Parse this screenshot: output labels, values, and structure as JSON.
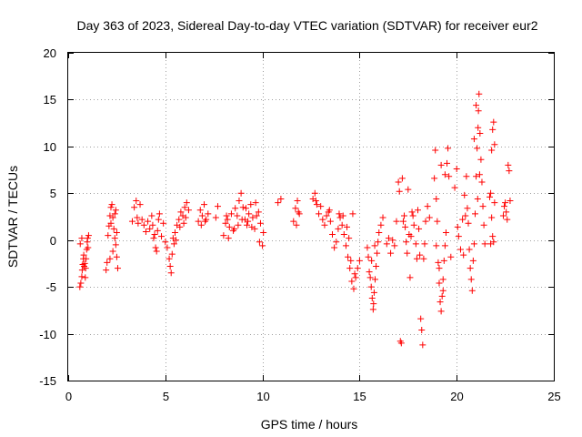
{
  "chart_data": {
    "type": "scatter",
    "title": "Day 363 of 2023, Sidereal Day-to-day VTEC variation (SDTVAR) for receiver eur2",
    "xlabel": "GPS time / hours",
    "ylabel": "SDTVAR / TECUs",
    "xlim": [
      0,
      25
    ],
    "ylim": [
      -15,
      20
    ],
    "xticks": [
      "0",
      "5",
      "10",
      "15",
      "20",
      "25"
    ],
    "yticks": [
      "-15",
      "-10",
      "-5",
      "0",
      "5",
      "10",
      "15",
      "20"
    ],
    "grid": true,
    "marker": "plus",
    "series": [
      {
        "name": "SDTVAR",
        "color": "#ff0000",
        "points": [
          [
            0.6,
            -5.0
          ],
          [
            0.65,
            -4.6
          ],
          [
            0.7,
            -3.9
          ],
          [
            0.72,
            -3.2
          ],
          [
            0.75,
            -2.6
          ],
          [
            0.78,
            -2.0
          ],
          [
            0.8,
            -1.6
          ],
          [
            0.85,
            -2.5
          ],
          [
            0.9,
            -3.0
          ],
          [
            0.92,
            -2.0
          ],
          [
            0.95,
            -1.0
          ],
          [
            0.98,
            -0.2
          ],
          [
            1.0,
            0.2
          ],
          [
            1.02,
            -0.8
          ],
          [
            0.7,
            0.2
          ],
          [
            0.62,
            -0.4
          ],
          [
            1.05,
            0.5
          ],
          [
            0.88,
            -4.0
          ],
          [
            0.82,
            -2.8
          ],
          [
            1.95,
            -3.2
          ],
          [
            2.0,
            -2.4
          ],
          [
            2.05,
            0.5
          ],
          [
            2.1,
            1.5
          ],
          [
            2.15,
            2.6
          ],
          [
            2.2,
            3.5
          ],
          [
            2.25,
            3.8
          ],
          [
            2.3,
            2.4
          ],
          [
            2.35,
            1.2
          ],
          [
            2.4,
            0.2
          ],
          [
            2.45,
            -0.5
          ],
          [
            2.5,
            -1.8
          ],
          [
            2.55,
            -3.0
          ],
          [
            2.45,
            3.2
          ],
          [
            2.3,
            -1.2
          ],
          [
            2.2,
            1.8
          ],
          [
            2.15,
            -2.0
          ],
          [
            2.4,
            2.8
          ],
          [
            2.5,
            0.8
          ],
          [
            3.3,
            2.0
          ],
          [
            3.4,
            3.5
          ],
          [
            3.5,
            4.2
          ],
          [
            3.55,
            2.4
          ],
          [
            3.6,
            1.8
          ],
          [
            3.7,
            3.8
          ],
          [
            3.8,
            2.2
          ],
          [
            3.9,
            1.6
          ],
          [
            4.0,
            0.9
          ],
          [
            4.1,
            2.0
          ],
          [
            4.2,
            1.2
          ],
          [
            4.3,
            2.6
          ],
          [
            4.4,
            0.2
          ],
          [
            4.5,
            -0.8
          ],
          [
            4.6,
            1.0
          ],
          [
            4.7,
            2.8
          ],
          [
            4.8,
            0.4
          ],
          [
            4.9,
            1.8
          ],
          [
            5.0,
            -0.2
          ],
          [
            4.55,
            -1.2
          ],
          [
            4.35,
            1.6
          ],
          [
            4.65,
            2.2
          ],
          [
            4.45,
            0.6
          ],
          [
            5.1,
            -0.8
          ],
          [
            5.2,
            -2.0
          ],
          [
            5.3,
            -3.5
          ],
          [
            5.35,
            -1.5
          ],
          [
            5.4,
            0.2
          ],
          [
            5.5,
            0.8
          ],
          [
            5.6,
            1.6
          ],
          [
            5.7,
            2.2
          ],
          [
            5.8,
            3.0
          ],
          [
            5.9,
            2.6
          ],
          [
            6.0,
            3.5
          ],
          [
            6.1,
            4.0
          ],
          [
            6.2,
            3.2
          ],
          [
            5.45,
            -0.4
          ],
          [
            5.75,
            1.4
          ],
          [
            5.25,
            -2.8
          ],
          [
            6.05,
            2.4
          ],
          [
            5.55,
            0.0
          ],
          [
            5.95,
            1.8
          ],
          [
            6.7,
            2.0
          ],
          [
            6.8,
            3.2
          ],
          [
            6.9,
            2.6
          ],
          [
            7.0,
            3.8
          ],
          [
            7.1,
            2.2
          ],
          [
            7.2,
            2.8
          ],
          [
            7.6,
            2.4
          ],
          [
            7.7,
            3.6
          ],
          [
            6.85,
            1.6
          ],
          [
            7.05,
            2.0
          ],
          [
            8.0,
            0.5
          ],
          [
            8.1,
            1.8
          ],
          [
            8.2,
            2.2
          ],
          [
            8.3,
            1.4
          ],
          [
            8.4,
            2.8
          ],
          [
            8.5,
            1.0
          ],
          [
            8.6,
            3.4
          ],
          [
            8.7,
            2.6
          ],
          [
            8.8,
            4.2
          ],
          [
            8.9,
            5.0
          ],
          [
            9.0,
            3.5
          ],
          [
            9.1,
            2.2
          ],
          [
            9.2,
            1.6
          ],
          [
            9.3,
            2.8
          ],
          [
            9.4,
            3.8
          ],
          [
            9.5,
            2.4
          ],
          [
            9.6,
            1.2
          ],
          [
            9.7,
            2.6
          ],
          [
            9.8,
            3.0
          ],
          [
            9.9,
            1.8
          ],
          [
            10.0,
            -0.6
          ],
          [
            10.05,
            0.8
          ],
          [
            9.85,
            -0.2
          ],
          [
            8.25,
            0.2
          ],
          [
            8.55,
            1.2
          ],
          [
            9.25,
            2.0
          ],
          [
            8.75,
            1.6
          ],
          [
            9.45,
            1.4
          ],
          [
            9.65,
            4.0
          ],
          [
            8.15,
            2.6
          ],
          [
            8.95,
            2.2
          ],
          [
            9.15,
            3.4
          ],
          [
            10.8,
            4.0
          ],
          [
            10.95,
            4.4
          ],
          [
            11.6,
            2.0
          ],
          [
            11.7,
            3.4
          ],
          [
            11.8,
            4.2
          ],
          [
            11.9,
            2.8
          ],
          [
            11.75,
            1.6
          ],
          [
            11.85,
            3.0
          ],
          [
            12.6,
            4.4
          ],
          [
            12.7,
            5.0
          ],
          [
            12.8,
            3.8
          ],
          [
            12.9,
            2.8
          ],
          [
            13.0,
            3.6
          ],
          [
            13.1,
            2.2
          ],
          [
            13.2,
            1.6
          ],
          [
            13.3,
            2.6
          ],
          [
            13.4,
            3.0
          ],
          [
            13.5,
            2.0
          ],
          [
            13.6,
            0.6
          ],
          [
            13.7,
            -0.8
          ],
          [
            13.8,
            -0.2
          ],
          [
            13.9,
            1.2
          ],
          [
            14.0,
            2.4
          ],
          [
            14.1,
            1.6
          ],
          [
            14.2,
            0.6
          ],
          [
            14.3,
            -0.6
          ],
          [
            14.4,
            -1.8
          ],
          [
            14.5,
            -3.0
          ],
          [
            14.6,
            -4.4
          ],
          [
            14.7,
            -5.2
          ],
          [
            14.8,
            -4.0
          ],
          [
            14.9,
            -3.0
          ],
          [
            15.0,
            -2.2
          ],
          [
            14.65,
            2.8
          ],
          [
            14.35,
            1.4
          ],
          [
            14.45,
            0.2
          ],
          [
            14.55,
            -2.2
          ],
          [
            14.75,
            -3.6
          ],
          [
            13.95,
            2.8
          ],
          [
            14.15,
            2.6
          ],
          [
            13.45,
            3.2
          ],
          [
            12.75,
            4.2
          ],
          [
            15.4,
            -0.8
          ],
          [
            15.5,
            -3.4
          ],
          [
            15.6,
            -5.0
          ],
          [
            15.65,
            -6.2
          ],
          [
            15.7,
            -7.4
          ],
          [
            15.75,
            -5.6
          ],
          [
            15.8,
            -4.2
          ],
          [
            15.85,
            -2.8
          ],
          [
            15.9,
            -1.4
          ],
          [
            15.95,
            -0.2
          ],
          [
            16.0,
            0.8
          ],
          [
            16.1,
            1.6
          ],
          [
            16.2,
            2.4
          ],
          [
            15.55,
            -4.0
          ],
          [
            15.72,
            -6.8
          ],
          [
            15.62,
            -2.2
          ],
          [
            15.45,
            -1.8
          ],
          [
            15.78,
            -0.6
          ],
          [
            16.4,
            -0.4
          ],
          [
            16.5,
            0.2
          ],
          [
            16.6,
            -1.4
          ],
          [
            16.7,
            0.0
          ],
          [
            16.8,
            -0.6
          ],
          [
            16.9,
            2.0
          ],
          [
            17.0,
            6.2
          ],
          [
            17.05,
            5.2
          ],
          [
            17.1,
            -10.8
          ],
          [
            17.15,
            -11.0
          ],
          [
            17.2,
            6.6
          ],
          [
            17.3,
            2.6
          ],
          [
            17.35,
            1.4
          ],
          [
            17.4,
            -0.2
          ],
          [
            17.45,
            -1.4
          ],
          [
            17.5,
            5.4
          ],
          [
            17.55,
            0.6
          ],
          [
            17.6,
            -4.0
          ],
          [
            17.7,
            3.0
          ],
          [
            17.8,
            1.6
          ],
          [
            17.9,
            -0.4
          ],
          [
            18.0,
            3.2
          ],
          [
            18.05,
            1.2
          ],
          [
            18.1,
            -1.6
          ],
          [
            18.15,
            -8.4
          ],
          [
            18.2,
            -9.6
          ],
          [
            18.25,
            -11.2
          ],
          [
            18.3,
            -2.0
          ],
          [
            18.35,
            -0.4
          ],
          [
            18.4,
            2.0
          ],
          [
            18.5,
            3.6
          ],
          [
            18.6,
            2.4
          ],
          [
            17.25,
            2.0
          ],
          [
            17.75,
            2.6
          ],
          [
            17.65,
            0.4
          ],
          [
            17.95,
            -2.0
          ],
          [
            18.85,
            6.6
          ],
          [
            18.9,
            9.6
          ],
          [
            18.95,
            4.4
          ],
          [
            19.0,
            2.0
          ],
          [
            19.05,
            -2.4
          ],
          [
            19.1,
            -4.6
          ],
          [
            19.15,
            -6.6
          ],
          [
            19.2,
            -7.6
          ],
          [
            19.25,
            -6.0
          ],
          [
            19.3,
            -4.2
          ],
          [
            19.35,
            -2.2
          ],
          [
            19.4,
            -0.6
          ],
          [
            19.45,
            0.8
          ],
          [
            19.5,
            8.2
          ],
          [
            19.55,
            9.8
          ],
          [
            19.6,
            6.8
          ],
          [
            19.7,
            -1.8
          ],
          [
            19.2,
            8.0
          ],
          [
            19.4,
            7.0
          ],
          [
            19.1,
            -3.0
          ],
          [
            19.3,
            -5.4
          ],
          [
            18.95,
            -0.6
          ],
          [
            19.9,
            5.6
          ],
          [
            20.0,
            7.6
          ],
          [
            20.05,
            1.4
          ],
          [
            20.1,
            0.4
          ],
          [
            20.2,
            -1.0
          ],
          [
            20.3,
            2.2
          ],
          [
            20.4,
            4.8
          ],
          [
            20.5,
            6.8
          ],
          [
            20.55,
            3.4
          ],
          [
            20.6,
            1.8
          ],
          [
            20.65,
            -1.0
          ],
          [
            20.7,
            -3.0
          ],
          [
            20.75,
            -4.2
          ],
          [
            20.8,
            -5.4
          ],
          [
            20.85,
            -2.2
          ],
          [
            20.9,
            -0.4
          ],
          [
            20.95,
            2.8
          ],
          [
            21.0,
            6.8
          ],
          [
            21.05,
            9.8
          ],
          [
            21.1,
            12.0
          ],
          [
            21.12,
            13.8
          ],
          [
            21.15,
            15.6
          ],
          [
            21.2,
            11.4
          ],
          [
            21.25,
            8.6
          ],
          [
            21.3,
            6.2
          ],
          [
            21.35,
            3.6
          ],
          [
            21.4,
            1.6
          ],
          [
            21.45,
            -0.4
          ],
          [
            21.0,
            14.4
          ],
          [
            20.9,
            10.8
          ],
          [
            21.08,
            4.4
          ],
          [
            20.45,
            2.6
          ],
          [
            20.35,
            -1.6
          ],
          [
            21.18,
            7.0
          ],
          [
            21.7,
            4.6
          ],
          [
            21.75,
            5.0
          ],
          [
            21.8,
            9.6
          ],
          [
            21.85,
            11.8
          ],
          [
            21.9,
            12.6
          ],
          [
            21.95,
            10.2
          ],
          [
            21.8,
            2.4
          ],
          [
            21.85,
            0.4
          ],
          [
            21.9,
            -0.2
          ],
          [
            21.95,
            4.0
          ],
          [
            21.75,
            -0.4
          ],
          [
            22.4,
            2.6
          ],
          [
            22.5,
            4.0
          ],
          [
            22.55,
            3.0
          ],
          [
            22.6,
            2.2
          ],
          [
            22.65,
            8.0
          ],
          [
            22.7,
            7.4
          ],
          [
            22.45,
            3.6
          ],
          [
            22.75,
            4.2
          ]
        ]
      }
    ]
  }
}
